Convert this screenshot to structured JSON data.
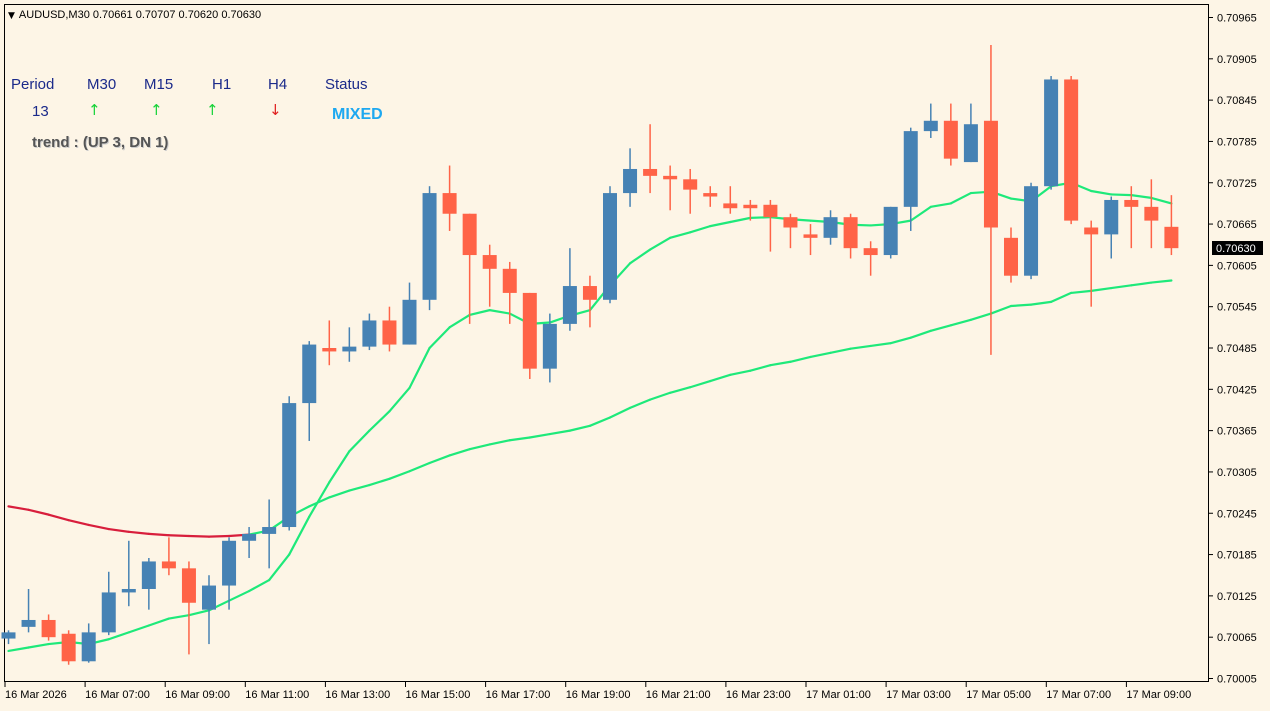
{
  "header": {
    "symbol_line": "AUDUSD,M30  0.70661 0.70707 0.70620 0.70630"
  },
  "dashboard": {
    "headers": [
      "Period",
      "M30",
      "M15",
      "H1",
      "H4",
      "Status"
    ],
    "period_value": "13",
    "arrows": [
      {
        "glyph": "↑",
        "color": "#19d33a"
      },
      {
        "glyph": "↑",
        "color": "#19d33a"
      },
      {
        "glyph": "↑",
        "color": "#19d33a"
      },
      {
        "glyph": "↓",
        "color": "#e02020"
      }
    ],
    "status": "MIXED",
    "trend": "trend : (UP 3, DN 1)"
  },
  "chart_data": {
    "type": "candlestick",
    "symbol": "AUDUSD",
    "timeframe": "M30",
    "ylim": [
      0.70005,
      0.70965
    ],
    "y_ticks": [
      "0.70965",
      "0.70905",
      "0.70845",
      "0.70785",
      "0.70725",
      "0.70665",
      "0.70605",
      "0.70545",
      "0.70485",
      "0.70425",
      "0.70365",
      "0.70305",
      "0.70245",
      "0.70185",
      "0.70125",
      "0.70065",
      "0.70005"
    ],
    "x_ticks": [
      "16 Mar 2026",
      "16 Mar 07:00",
      "16 Mar 09:00",
      "16 Mar 11:00",
      "16 Mar 13:00",
      "16 Mar 15:00",
      "16 Mar 17:00",
      "16 Mar 19:00",
      "16 Mar 21:00",
      "16 Mar 23:00",
      "17 Mar 01:00",
      "17 Mar 03:00",
      "17 Mar 05:00",
      "17 Mar 07:00",
      "17 Mar 09:00"
    ],
    "current_price": "0.70630",
    "colors": {
      "bull": "#4682B4",
      "bear": "#FF6347",
      "ma_up": "#1ee97a",
      "ma_down": "#d81e3c"
    },
    "candles": [
      {
        "o": 0.70063,
        "h": 0.70075,
        "l": 0.70055,
        "c": 0.70072
      },
      {
        "o": 0.7008,
        "h": 0.70135,
        "l": 0.70072,
        "c": 0.7009
      },
      {
        "o": 0.7009,
        "h": 0.70098,
        "l": 0.7006,
        "c": 0.70065
      },
      {
        "o": 0.7007,
        "h": 0.70075,
        "l": 0.70025,
        "c": 0.7003
      },
      {
        "o": 0.7003,
        "h": 0.70085,
        "l": 0.70028,
        "c": 0.70072
      },
      {
        "o": 0.70072,
        "h": 0.7016,
        "l": 0.70068,
        "c": 0.7013
      },
      {
        "o": 0.7013,
        "h": 0.70205,
        "l": 0.7011,
        "c": 0.70135
      },
      {
        "o": 0.70135,
        "h": 0.7018,
        "l": 0.70105,
        "c": 0.70175
      },
      {
        "o": 0.70175,
        "h": 0.7021,
        "l": 0.70155,
        "c": 0.70165
      },
      {
        "o": 0.70165,
        "h": 0.70175,
        "l": 0.7004,
        "c": 0.70115
      },
      {
        "o": 0.70105,
        "h": 0.70155,
        "l": 0.70055,
        "c": 0.7014
      },
      {
        "o": 0.7014,
        "h": 0.7021,
        "l": 0.70105,
        "c": 0.70205
      },
      {
        "o": 0.70205,
        "h": 0.70225,
        "l": 0.7018,
        "c": 0.70215
      },
      {
        "o": 0.70215,
        "h": 0.70265,
        "l": 0.70165,
        "c": 0.70225
      },
      {
        "o": 0.70225,
        "h": 0.70415,
        "l": 0.7022,
        "c": 0.70405
      },
      {
        "o": 0.70405,
        "h": 0.70495,
        "l": 0.7035,
        "c": 0.7049
      },
      {
        "o": 0.70485,
        "h": 0.70525,
        "l": 0.7046,
        "c": 0.7048
      },
      {
        "o": 0.7048,
        "h": 0.70515,
        "l": 0.70465,
        "c": 0.70487
      },
      {
        "o": 0.70487,
        "h": 0.70535,
        "l": 0.70482,
        "c": 0.70525
      },
      {
        "o": 0.70525,
        "h": 0.70545,
        "l": 0.7048,
        "c": 0.7049
      },
      {
        "o": 0.7049,
        "h": 0.7058,
        "l": 0.7049,
        "c": 0.70555
      },
      {
        "o": 0.70555,
        "h": 0.7072,
        "l": 0.7054,
        "c": 0.7071
      },
      {
        "o": 0.7071,
        "h": 0.7075,
        "l": 0.70655,
        "c": 0.7068
      },
      {
        "o": 0.7068,
        "h": 0.7068,
        "l": 0.7052,
        "c": 0.7062
      },
      {
        "o": 0.7062,
        "h": 0.70635,
        "l": 0.70545,
        "c": 0.706
      },
      {
        "o": 0.706,
        "h": 0.7061,
        "l": 0.7052,
        "c": 0.70565
      },
      {
        "o": 0.70565,
        "h": 0.70565,
        "l": 0.7044,
        "c": 0.70455
      },
      {
        "o": 0.70455,
        "h": 0.70535,
        "l": 0.70435,
        "c": 0.7052
      },
      {
        "o": 0.7052,
        "h": 0.7063,
        "l": 0.7051,
        "c": 0.70575
      },
      {
        "o": 0.70575,
        "h": 0.7059,
        "l": 0.70515,
        "c": 0.70555
      },
      {
        "o": 0.70555,
        "h": 0.7072,
        "l": 0.7055,
        "c": 0.7071
      },
      {
        "o": 0.7071,
        "h": 0.70775,
        "l": 0.7069,
        "c": 0.70745
      },
      {
        "o": 0.70745,
        "h": 0.7081,
        "l": 0.7071,
        "c": 0.70735
      },
      {
        "o": 0.70735,
        "h": 0.7075,
        "l": 0.70685,
        "c": 0.7073
      },
      {
        "o": 0.7073,
        "h": 0.70745,
        "l": 0.7068,
        "c": 0.70715
      },
      {
        "o": 0.7071,
        "h": 0.7072,
        "l": 0.7069,
        "c": 0.70705
      },
      {
        "o": 0.70695,
        "h": 0.7072,
        "l": 0.7068,
        "c": 0.70688
      },
      {
        "o": 0.70693,
        "h": 0.707,
        "l": 0.7067,
        "c": 0.70688
      },
      {
        "o": 0.70693,
        "h": 0.707,
        "l": 0.70625,
        "c": 0.70675
      },
      {
        "o": 0.70675,
        "h": 0.7068,
        "l": 0.7063,
        "c": 0.7066
      },
      {
        "o": 0.7065,
        "h": 0.70665,
        "l": 0.7062,
        "c": 0.70645
      },
      {
        "o": 0.70645,
        "h": 0.70685,
        "l": 0.70635,
        "c": 0.70675
      },
      {
        "o": 0.70675,
        "h": 0.7068,
        "l": 0.70615,
        "c": 0.7063
      },
      {
        "o": 0.7063,
        "h": 0.7064,
        "l": 0.7059,
        "c": 0.7062
      },
      {
        "o": 0.7062,
        "h": 0.7069,
        "l": 0.70615,
        "c": 0.7069
      },
      {
        "o": 0.7069,
        "h": 0.70805,
        "l": 0.70655,
        "c": 0.708
      },
      {
        "o": 0.708,
        "h": 0.7084,
        "l": 0.7079,
        "c": 0.70815
      },
      {
        "o": 0.70815,
        "h": 0.7084,
        "l": 0.7075,
        "c": 0.7076
      },
      {
        "o": 0.70755,
        "h": 0.7084,
        "l": 0.70755,
        "c": 0.7081
      },
      {
        "o": 0.70815,
        "h": 0.70925,
        "l": 0.70475,
        "c": 0.7066
      },
      {
        "o": 0.70645,
        "h": 0.7066,
        "l": 0.7058,
        "c": 0.7059
      },
      {
        "o": 0.7059,
        "h": 0.70725,
        "l": 0.70585,
        "c": 0.7072
      },
      {
        "o": 0.7072,
        "h": 0.7088,
        "l": 0.70715,
        "c": 0.70875
      },
      {
        "o": 0.70875,
        "h": 0.7088,
        "l": 0.70665,
        "c": 0.7067
      },
      {
        "o": 0.7066,
        "h": 0.7067,
        "l": 0.70545,
        "c": 0.7065
      },
      {
        "o": 0.7065,
        "h": 0.70705,
        "l": 0.70615,
        "c": 0.707
      },
      {
        "o": 0.707,
        "h": 0.7072,
        "l": 0.7063,
        "c": 0.7069
      },
      {
        "o": 0.7069,
        "h": 0.7073,
        "l": 0.7063,
        "c": 0.7067
      },
      {
        "o": 0.70661,
        "h": 0.70707,
        "l": 0.7062,
        "c": 0.7063
      }
    ],
    "series": [
      {
        "values": [
          0.70255,
          0.7025,
          0.70243,
          0.70235,
          0.70228,
          0.70222,
          0.70218,
          0.70215,
          0.70213,
          0.70212,
          0.70211,
          0.70212,
          0.70214,
          0.7022,
          0.7024,
          0.70255,
          0.70268,
          0.70278,
          0.70286,
          0.70295,
          0.70306,
          0.70318,
          0.70329,
          0.70338,
          0.70345,
          0.70351,
          0.70355,
          0.7036,
          0.70365,
          0.70372,
          0.70384,
          0.70398,
          0.7041,
          0.7042,
          0.70428,
          0.70437,
          0.70446,
          0.70452,
          0.7046,
          0.70465,
          0.70472,
          0.70478,
          0.70484,
          0.70488,
          0.70492,
          0.705,
          0.7051,
          0.70518,
          0.70526,
          0.70535,
          0.70546,
          0.70548,
          0.70552,
          0.70565,
          0.70568,
          0.70572,
          0.70576,
          0.7058,
          0.70583
        ]
      },
      {
        "values": [
          0.70045,
          0.7005,
          0.70055,
          0.70058,
          0.70055,
          0.70062,
          0.70072,
          0.70082,
          0.70092,
          0.70097,
          0.70104,
          0.70118,
          0.70132,
          0.70148,
          0.70185,
          0.7024,
          0.7029,
          0.70335,
          0.70365,
          0.70393,
          0.70427,
          0.70485,
          0.70515,
          0.70533,
          0.7054,
          0.70535,
          0.7052,
          0.70522,
          0.70532,
          0.7054,
          0.70576,
          0.70608,
          0.70628,
          0.70645,
          0.70653,
          0.70662,
          0.70668,
          0.70674,
          0.70675,
          0.70672,
          0.7067,
          0.70668,
          0.70664,
          0.70663,
          0.70665,
          0.7067,
          0.7069,
          0.70695,
          0.7071,
          0.70712,
          0.70702,
          0.70698,
          0.7072,
          0.70725,
          0.70713,
          0.70708,
          0.70707,
          0.70703,
          0.70695
        ]
      }
    ]
  }
}
